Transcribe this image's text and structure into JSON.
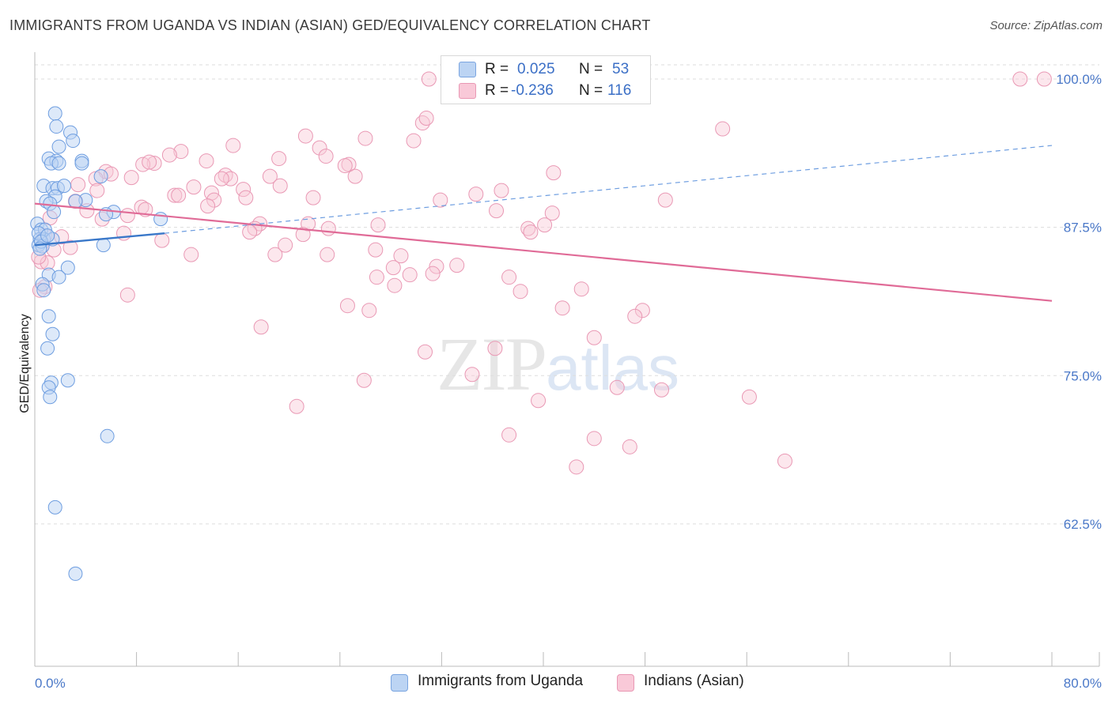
{
  "title": "IMMIGRANTS FROM UGANDA VS INDIAN (ASIAN) GED/EQUIVALENCY CORRELATION CHART",
  "source": "Source: ZipAtlas.com",
  "watermark": {
    "zip": "ZIP",
    "atlas": "atlas"
  },
  "legend": {
    "r_label": "R =",
    "n_label": "N =",
    "rows": [
      {
        "r": "0.025",
        "n": "53",
        "color": "#a9c8f0"
      },
      {
        "r": "-0.236",
        "n": "116",
        "color": "#f7b6cb"
      }
    ]
  },
  "chart_data": {
    "type": "scatter",
    "title": "IMMIGRANTS FROM UGANDA VS INDIAN (ASIAN) GED/EQUIVALENCY CORRELATION CHART",
    "xlabel": "",
    "ylabel": "GED/Equivalency",
    "xlim": [
      0,
      80
    ],
    "ylim": [
      50.5,
      102
    ],
    "x_tick_labels": [
      "0.0%",
      "80.0%"
    ],
    "y_ticks": [
      62.5,
      75.0,
      87.5,
      100.0
    ],
    "y_tick_labels": [
      "62.5%",
      "75.0%",
      "87.5%",
      "100.0%"
    ],
    "grid": "horizontal dashed",
    "series": [
      {
        "name": "Immigrants from Uganda",
        "color": "#6d9de0",
        "fill": "#bcd4f3",
        "trend": {
          "x": [
            0,
            10.2
          ],
          "y": [
            86.0,
            87.0
          ],
          "style": "solid",
          "color": "#3a78c9"
        },
        "trend_ext": {
          "x": [
            10.2,
            80
          ],
          "y": [
            87.0,
            94.4
          ],
          "style": "dashed",
          "color": "#6d9de0"
        },
        "points": [
          [
            1.6,
            97.1
          ],
          [
            1.7,
            96.0
          ],
          [
            2.8,
            95.5
          ],
          [
            1.9,
            94.3
          ],
          [
            3.0,
            94.8
          ],
          [
            1.1,
            93.3
          ],
          [
            1.7,
            93.1
          ],
          [
            3.7,
            93.1
          ],
          [
            1.3,
            92.9
          ],
          [
            1.9,
            92.9
          ],
          [
            3.7,
            92.9
          ],
          [
            5.2,
            91.8
          ],
          [
            0.7,
            91.0
          ],
          [
            1.4,
            90.8
          ],
          [
            1.8,
            90.8
          ],
          [
            2.3,
            91.0
          ],
          [
            1.6,
            90.1
          ],
          [
            4.0,
            89.8
          ],
          [
            0.9,
            89.7
          ],
          [
            1.2,
            89.5
          ],
          [
            3.2,
            89.7
          ],
          [
            1.5,
            88.8
          ],
          [
            6.2,
            88.8
          ],
          [
            5.6,
            88.6
          ],
          [
            9.9,
            88.2
          ],
          [
            0.2,
            87.8
          ],
          [
            0.5,
            87.3
          ],
          [
            0.8,
            87.3
          ],
          [
            0.4,
            86.5
          ],
          [
            0.7,
            86.5
          ],
          [
            1.4,
            86.5
          ],
          [
            0.3,
            86.0
          ],
          [
            0.6,
            85.9
          ],
          [
            5.4,
            86.0
          ],
          [
            2.6,
            84.1
          ],
          [
            1.1,
            83.5
          ],
          [
            1.9,
            83.3
          ],
          [
            0.6,
            82.7
          ],
          [
            0.7,
            82.2
          ],
          [
            1.1,
            80.0
          ],
          [
            1.4,
            78.5
          ],
          [
            1.0,
            77.3
          ],
          [
            2.6,
            74.6
          ],
          [
            1.3,
            74.4
          ],
          [
            1.1,
            74.0
          ],
          [
            1.2,
            73.2
          ],
          [
            5.7,
            69.9
          ],
          [
            1.6,
            63.9
          ],
          [
            3.2,
            58.3
          ],
          [
            0.3,
            87.0
          ],
          [
            0.5,
            86.3
          ],
          [
            1.0,
            86.8
          ],
          [
            0.4,
            85.7
          ]
        ]
      },
      {
        "name": "Indians (Asian)",
        "color": "#e998b4",
        "fill": "#f9c9d8",
        "trend": {
          "x": [
            0,
            80
          ],
          "y": [
            89.5,
            81.3
          ],
          "style": "solid",
          "color": "#e06b97"
        },
        "points": [
          [
            31.0,
            100.0
          ],
          [
            47.8,
            100.0
          ],
          [
            77.5,
            100.0
          ],
          [
            79.4,
            100.0
          ],
          [
            30.5,
            96.3
          ],
          [
            30.8,
            96.7
          ],
          [
            54.1,
            95.8
          ],
          [
            21.3,
            95.2
          ],
          [
            26.0,
            95.0
          ],
          [
            29.8,
            94.8
          ],
          [
            15.6,
            94.4
          ],
          [
            22.4,
            94.2
          ],
          [
            11.5,
            93.9
          ],
          [
            10.6,
            93.6
          ],
          [
            22.9,
            93.5
          ],
          [
            19.2,
            93.3
          ],
          [
            13.5,
            93.1
          ],
          [
            9.4,
            92.9
          ],
          [
            8.5,
            92.8
          ],
          [
            9.0,
            93.0
          ],
          [
            24.7,
            92.8
          ],
          [
            24.4,
            92.7
          ],
          [
            5.6,
            92.2
          ],
          [
            6.0,
            92.0
          ],
          [
            40.8,
            92.1
          ],
          [
            15.0,
            91.9
          ],
          [
            25.2,
            91.8
          ],
          [
            18.5,
            91.8
          ],
          [
            7.6,
            91.7
          ],
          [
            15.4,
            91.6
          ],
          [
            14.7,
            91.6
          ],
          [
            4.8,
            91.6
          ],
          [
            19.3,
            91.0
          ],
          [
            12.5,
            90.9
          ],
          [
            16.4,
            90.7
          ],
          [
            3.4,
            91.1
          ],
          [
            4.9,
            90.6
          ],
          [
            36.7,
            90.6
          ],
          [
            13.9,
            90.4
          ],
          [
            34.7,
            90.3
          ],
          [
            11.0,
            90.2
          ],
          [
            11.3,
            90.2
          ],
          [
            16.6,
            90.0
          ],
          [
            21.9,
            90.0
          ],
          [
            14.1,
            89.8
          ],
          [
            31.9,
            89.8
          ],
          [
            49.6,
            89.8
          ],
          [
            3.2,
            89.7
          ],
          [
            13.6,
            89.3
          ],
          [
            8.4,
            89.2
          ],
          [
            8.7,
            89.0
          ],
          [
            4.1,
            88.9
          ],
          [
            36.3,
            88.9
          ],
          [
            40.7,
            88.7
          ],
          [
            7.3,
            88.5
          ],
          [
            1.2,
            88.3
          ],
          [
            5.3,
            88.2
          ],
          [
            21.5,
            87.8
          ],
          [
            17.7,
            87.8
          ],
          [
            27.0,
            87.7
          ],
          [
            40.1,
            87.7
          ],
          [
            17.3,
            87.4
          ],
          [
            23.1,
            87.4
          ],
          [
            38.8,
            87.4
          ],
          [
            16.9,
            87.1
          ],
          [
            39.0,
            87.1
          ],
          [
            7.0,
            87.0
          ],
          [
            21.1,
            86.9
          ],
          [
            0.8,
            86.8
          ],
          [
            2.1,
            86.7
          ],
          [
            10.0,
            86.4
          ],
          [
            19.7,
            86.0
          ],
          [
            2.8,
            85.8
          ],
          [
            26.8,
            85.6
          ],
          [
            12.3,
            85.2
          ],
          [
            18.9,
            85.2
          ],
          [
            23.0,
            85.2
          ],
          [
            28.8,
            85.1
          ],
          [
            0.5,
            84.6
          ],
          [
            1.0,
            84.5
          ],
          [
            33.2,
            84.3
          ],
          [
            31.6,
            84.2
          ],
          [
            28.2,
            84.1
          ],
          [
            31.3,
            83.6
          ],
          [
            29.5,
            83.5
          ],
          [
            26.9,
            83.3
          ],
          [
            37.3,
            83.3
          ],
          [
            28.3,
            82.6
          ],
          [
            43.0,
            82.3
          ],
          [
            38.2,
            82.1
          ],
          [
            7.3,
            81.8
          ],
          [
            0.8,
            82.5
          ],
          [
            0.4,
            82.2
          ],
          [
            24.6,
            80.9
          ],
          [
            41.5,
            80.7
          ],
          [
            26.3,
            80.5
          ],
          [
            47.8,
            80.5
          ],
          [
            47.2,
            80.0
          ],
          [
            17.8,
            79.1
          ],
          [
            44.0,
            78.2
          ],
          [
            36.2,
            77.3
          ],
          [
            30.7,
            77.0
          ],
          [
            34.4,
            75.1
          ],
          [
            25.9,
            74.6
          ],
          [
            45.8,
            74.0
          ],
          [
            49.3,
            73.8
          ],
          [
            56.2,
            73.2
          ],
          [
            39.6,
            72.9
          ],
          [
            20.6,
            72.4
          ],
          [
            37.3,
            70.0
          ],
          [
            44.0,
            69.7
          ],
          [
            46.8,
            69.0
          ],
          [
            59.0,
            67.8
          ],
          [
            42.6,
            67.3
          ],
          [
            0.3,
            85.0
          ],
          [
            1.5,
            85.6
          ]
        ]
      }
    ]
  },
  "bottom_legend": [
    {
      "label": "Immigrants from Uganda",
      "color": "#bcd4f3",
      "border": "#7aa5e0"
    },
    {
      "label": "Indians (Asian)",
      "color": "#f9c9d8",
      "border": "#e998b4"
    }
  ]
}
